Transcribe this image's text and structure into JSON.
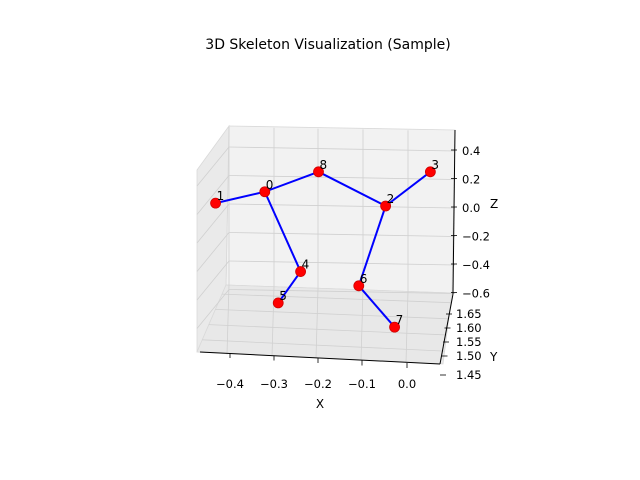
{
  "chart_data": {
    "type": "scatter",
    "title": "3D Skeleton Visualization (Sample)",
    "xlabel": "X",
    "ylabel": "Y",
    "zlabel": "Z",
    "grid": true,
    "x_ticks": [
      "−0.4",
      "−0.3",
      "−0.2",
      "−0.1",
      "0.0"
    ],
    "y_ticks": [
      "1.65",
      "1.60",
      "1.55",
      "1.50",
      "1.45"
    ],
    "z_ticks": [
      "0.4",
      "0.2",
      "0.0",
      "−0.2",
      "−0.4",
      "−0.6"
    ],
    "joints": [
      {
        "id": "0",
        "x": -0.32,
        "z": 0.1
      },
      {
        "id": "1",
        "x": -0.43,
        "z": 0.02
      },
      {
        "id": "2",
        "x": -0.05,
        "z": 0.0
      },
      {
        "id": "3",
        "x": 0.05,
        "z": 0.24
      },
      {
        "id": "4",
        "x": -0.24,
        "z": -0.46
      },
      {
        "id": "5",
        "x": -0.29,
        "z": -0.68
      },
      {
        "id": "6",
        "x": -0.11,
        "z": -0.56
      },
      {
        "id": "7",
        "x": -0.03,
        "z": -0.85
      },
      {
        "id": "8",
        "x": -0.2,
        "z": 0.24
      }
    ],
    "bones": [
      [
        "1",
        "0"
      ],
      [
        "0",
        "8"
      ],
      [
        "8",
        "2"
      ],
      [
        "2",
        "3"
      ],
      [
        "0",
        "4"
      ],
      [
        "4",
        "5"
      ],
      [
        "2",
        "6"
      ],
      [
        "6",
        "7"
      ]
    ],
    "colors": {
      "joint": "#ff0000",
      "bone": "#0000ff",
      "pane": "#f2f2f2",
      "grid": "#d0d0d0"
    }
  }
}
